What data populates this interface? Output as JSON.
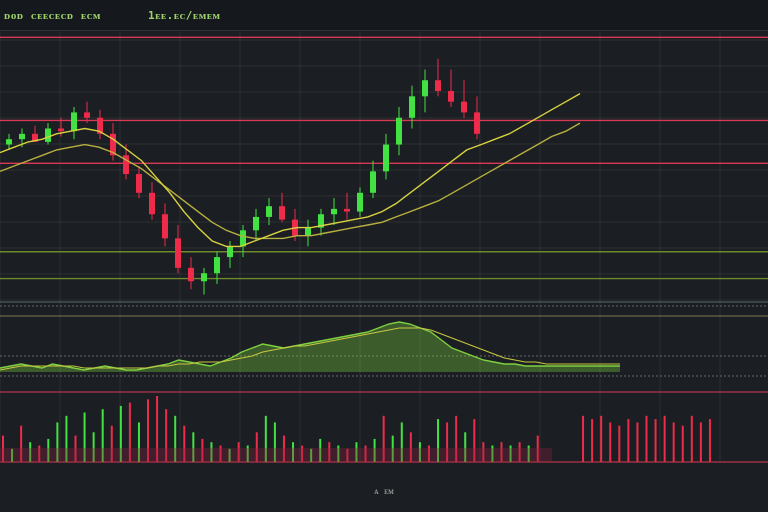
{
  "header": {
    "title_left": "ᴅᴏᴅ ᴄᴇᴇᴄᴇᴄᴅ ᴇᴄᴍ",
    "title_right": "1ᴇᴇ.ᴇᴄ/ᴇᴍᴇᴍ"
  },
  "footer": {
    "label": "ᴀ ᴇᴍ"
  },
  "chart_data": {
    "type": "candlestick",
    "title": "",
    "xlabel": "",
    "ylabel": "",
    "grid": true,
    "colors": {
      "up": "#43e243",
      "down": "#ee2b4a",
      "ma_fast": "#d8d240",
      "ma_slow": "#b8b040",
      "level": "#d83a56",
      "osc": "#7fd040",
      "osc_line": "#c8c840",
      "background": "#1b1e22",
      "grid": "#3a4040"
    },
    "price_ylim": [
      0,
      100
    ],
    "levels": [
      {
        "y": 98,
        "color": "#d83a56"
      },
      {
        "y": 67,
        "color": "#d83a56"
      },
      {
        "y": 51,
        "color": "#d83a56"
      },
      {
        "y": 18,
        "color": "#6c8a2c"
      },
      {
        "y": 8,
        "color": "#6c8a2c"
      }
    ],
    "candles": [
      [
        58,
        62,
        56,
        60
      ],
      [
        60,
        64,
        57,
        62
      ],
      [
        62,
        65,
        59,
        59
      ],
      [
        59,
        66,
        58,
        64
      ],
      [
        64,
        68,
        61,
        63
      ],
      [
        63,
        72,
        60,
        70
      ],
      [
        70,
        74,
        66,
        68
      ],
      [
        68,
        71,
        60,
        62
      ],
      [
        62,
        66,
        52,
        54
      ],
      [
        54,
        58,
        45,
        47
      ],
      [
        47,
        50,
        38,
        40
      ],
      [
        40,
        44,
        30,
        32
      ],
      [
        32,
        36,
        20,
        23
      ],
      [
        23,
        28,
        10,
        12
      ],
      [
        12,
        16,
        4,
        7
      ],
      [
        7,
        12,
        2,
        10
      ],
      [
        10,
        18,
        6,
        16
      ],
      [
        16,
        22,
        12,
        20
      ],
      [
        20,
        28,
        16,
        26
      ],
      [
        26,
        34,
        22,
        31
      ],
      [
        31,
        38,
        28,
        35
      ],
      [
        35,
        40,
        29,
        30
      ],
      [
        30,
        34,
        22,
        24
      ],
      [
        24,
        30,
        20,
        27
      ],
      [
        27,
        34,
        24,
        32
      ],
      [
        32,
        38,
        28,
        34
      ],
      [
        34,
        40,
        30,
        33
      ],
      [
        33,
        42,
        31,
        40
      ],
      [
        40,
        52,
        38,
        48
      ],
      [
        48,
        62,
        45,
        58
      ],
      [
        58,
        72,
        54,
        68
      ],
      [
        68,
        80,
        64,
        76
      ],
      [
        76,
        86,
        70,
        82
      ],
      [
        82,
        90,
        76,
        78
      ],
      [
        78,
        86,
        72,
        74
      ],
      [
        74,
        82,
        68,
        70
      ],
      [
        70,
        76,
        60,
        62
      ]
    ],
    "ma_fast": [
      55,
      57,
      59,
      60,
      62,
      63,
      64,
      63,
      60,
      56,
      52,
      46,
      40,
      33,
      27,
      22,
      20,
      20,
      22,
      24,
      26,
      27,
      27,
      28,
      29,
      30,
      31,
      33,
      36,
      40,
      44,
      48,
      52,
      56,
      58,
      60,
      62,
      65,
      68,
      71,
      74,
      77
    ],
    "ma_slow": [
      48,
      50,
      52,
      54,
      56,
      57,
      58,
      57,
      55,
      52,
      49,
      45,
      41,
      37,
      33,
      29,
      26,
      24,
      23,
      23,
      23,
      24,
      24,
      25,
      26,
      27,
      28,
      29,
      31,
      33,
      35,
      37,
      40,
      43,
      46,
      49,
      52,
      55,
      58,
      61,
      63,
      66
    ],
    "oscillator": [
      2,
      3,
      4,
      3,
      2,
      4,
      3,
      2,
      1,
      2,
      3,
      2,
      1,
      1,
      2,
      3,
      4,
      6,
      5,
      4,
      3,
      5,
      7,
      10,
      12,
      14,
      13,
      12,
      13,
      14,
      15,
      16,
      17,
      18,
      19,
      20,
      22,
      24,
      25,
      24,
      22,
      20,
      16,
      12,
      10,
      8,
      6,
      5,
      4,
      4,
      3,
      3,
      3,
      3,
      3,
      3,
      3,
      3,
      3,
      3
    ],
    "oscillator_signal": [
      1,
      2,
      3,
      3,
      3,
      3,
      3,
      3,
      2,
      2,
      2,
      2,
      2,
      2,
      2,
      3,
      3,
      4,
      4,
      5,
      5,
      5,
      6,
      7,
      8,
      10,
      11,
      12,
      13,
      13,
      14,
      15,
      16,
      17,
      18,
      19,
      20,
      21,
      22,
      22,
      22,
      21,
      19,
      17,
      15,
      13,
      11,
      9,
      7,
      6,
      5,
      5,
      4,
      4,
      4,
      4,
      4,
      4,
      4,
      4
    ],
    "volume": [
      {
        "v": 40,
        "d": "down"
      },
      {
        "v": 20,
        "d": "up"
      },
      {
        "v": 55,
        "d": "down"
      },
      {
        "v": 30,
        "d": "up"
      },
      {
        "v": 25,
        "d": "down"
      },
      {
        "v": 35,
        "d": "up"
      },
      {
        "v": 60,
        "d": "up"
      },
      {
        "v": 70,
        "d": "up"
      },
      {
        "v": 40,
        "d": "down"
      },
      {
        "v": 75,
        "d": "up"
      },
      {
        "v": 45,
        "d": "up"
      },
      {
        "v": 80,
        "d": "up"
      },
      {
        "v": 55,
        "d": "down"
      },
      {
        "v": 85,
        "d": "up"
      },
      {
        "v": 90,
        "d": "down"
      },
      {
        "v": 60,
        "d": "up"
      },
      {
        "v": 95,
        "d": "down"
      },
      {
        "v": 100,
        "d": "down"
      },
      {
        "v": 80,
        "d": "down"
      },
      {
        "v": 70,
        "d": "up"
      },
      {
        "v": 55,
        "d": "down"
      },
      {
        "v": 45,
        "d": "up"
      },
      {
        "v": 35,
        "d": "down"
      },
      {
        "v": 30,
        "d": "up"
      },
      {
        "v": 25,
        "d": "down"
      },
      {
        "v": 20,
        "d": "up"
      },
      {
        "v": 30,
        "d": "down"
      },
      {
        "v": 25,
        "d": "up"
      },
      {
        "v": 45,
        "d": "down"
      },
      {
        "v": 70,
        "d": "up"
      },
      {
        "v": 60,
        "d": "up"
      },
      {
        "v": 40,
        "d": "down"
      },
      {
        "v": 30,
        "d": "up"
      },
      {
        "v": 25,
        "d": "down"
      },
      {
        "v": 20,
        "d": "up"
      },
      {
        "v": 35,
        "d": "up"
      },
      {
        "v": 30,
        "d": "down"
      },
      {
        "v": 25,
        "d": "up"
      },
      {
        "v": 20,
        "d": "down"
      },
      {
        "v": 30,
        "d": "up"
      },
      {
        "v": 25,
        "d": "down"
      },
      {
        "v": 35,
        "d": "up"
      },
      {
        "v": 70,
        "d": "down"
      },
      {
        "v": 40,
        "d": "up"
      },
      {
        "v": 60,
        "d": "up"
      },
      {
        "v": 45,
        "d": "down"
      },
      {
        "v": 30,
        "d": "up"
      },
      {
        "v": 25,
        "d": "down"
      },
      {
        "v": 65,
        "d": "up"
      },
      {
        "v": 60,
        "d": "down"
      },
      {
        "v": 70,
        "d": "down"
      },
      {
        "v": 45,
        "d": "up"
      },
      {
        "v": 65,
        "d": "down"
      },
      {
        "v": 30,
        "d": "down"
      },
      {
        "v": 25,
        "d": "up"
      },
      {
        "v": 30,
        "d": "down"
      },
      {
        "v": 25,
        "d": "up"
      },
      {
        "v": 30,
        "d": "down"
      },
      {
        "v": 25,
        "d": "up"
      },
      {
        "v": 40,
        "d": "down"
      },
      {
        "v": 0,
        "d": "up"
      },
      {
        "v": 0,
        "d": "up"
      },
      {
        "v": 0,
        "d": "up"
      },
      {
        "v": 0,
        "d": "up"
      },
      {
        "v": 70,
        "d": "down"
      },
      {
        "v": 65,
        "d": "down"
      },
      {
        "v": 70,
        "d": "down"
      },
      {
        "v": 60,
        "d": "down"
      },
      {
        "v": 55,
        "d": "down"
      },
      {
        "v": 65,
        "d": "down"
      },
      {
        "v": 60,
        "d": "down"
      },
      {
        "v": 70,
        "d": "down"
      },
      {
        "v": 65,
        "d": "down"
      },
      {
        "v": 70,
        "d": "down"
      },
      {
        "v": 60,
        "d": "down"
      },
      {
        "v": 55,
        "d": "down"
      },
      {
        "v": 70,
        "d": "down"
      },
      {
        "v": 60,
        "d": "down"
      },
      {
        "v": 65,
        "d": "down"
      }
    ]
  }
}
